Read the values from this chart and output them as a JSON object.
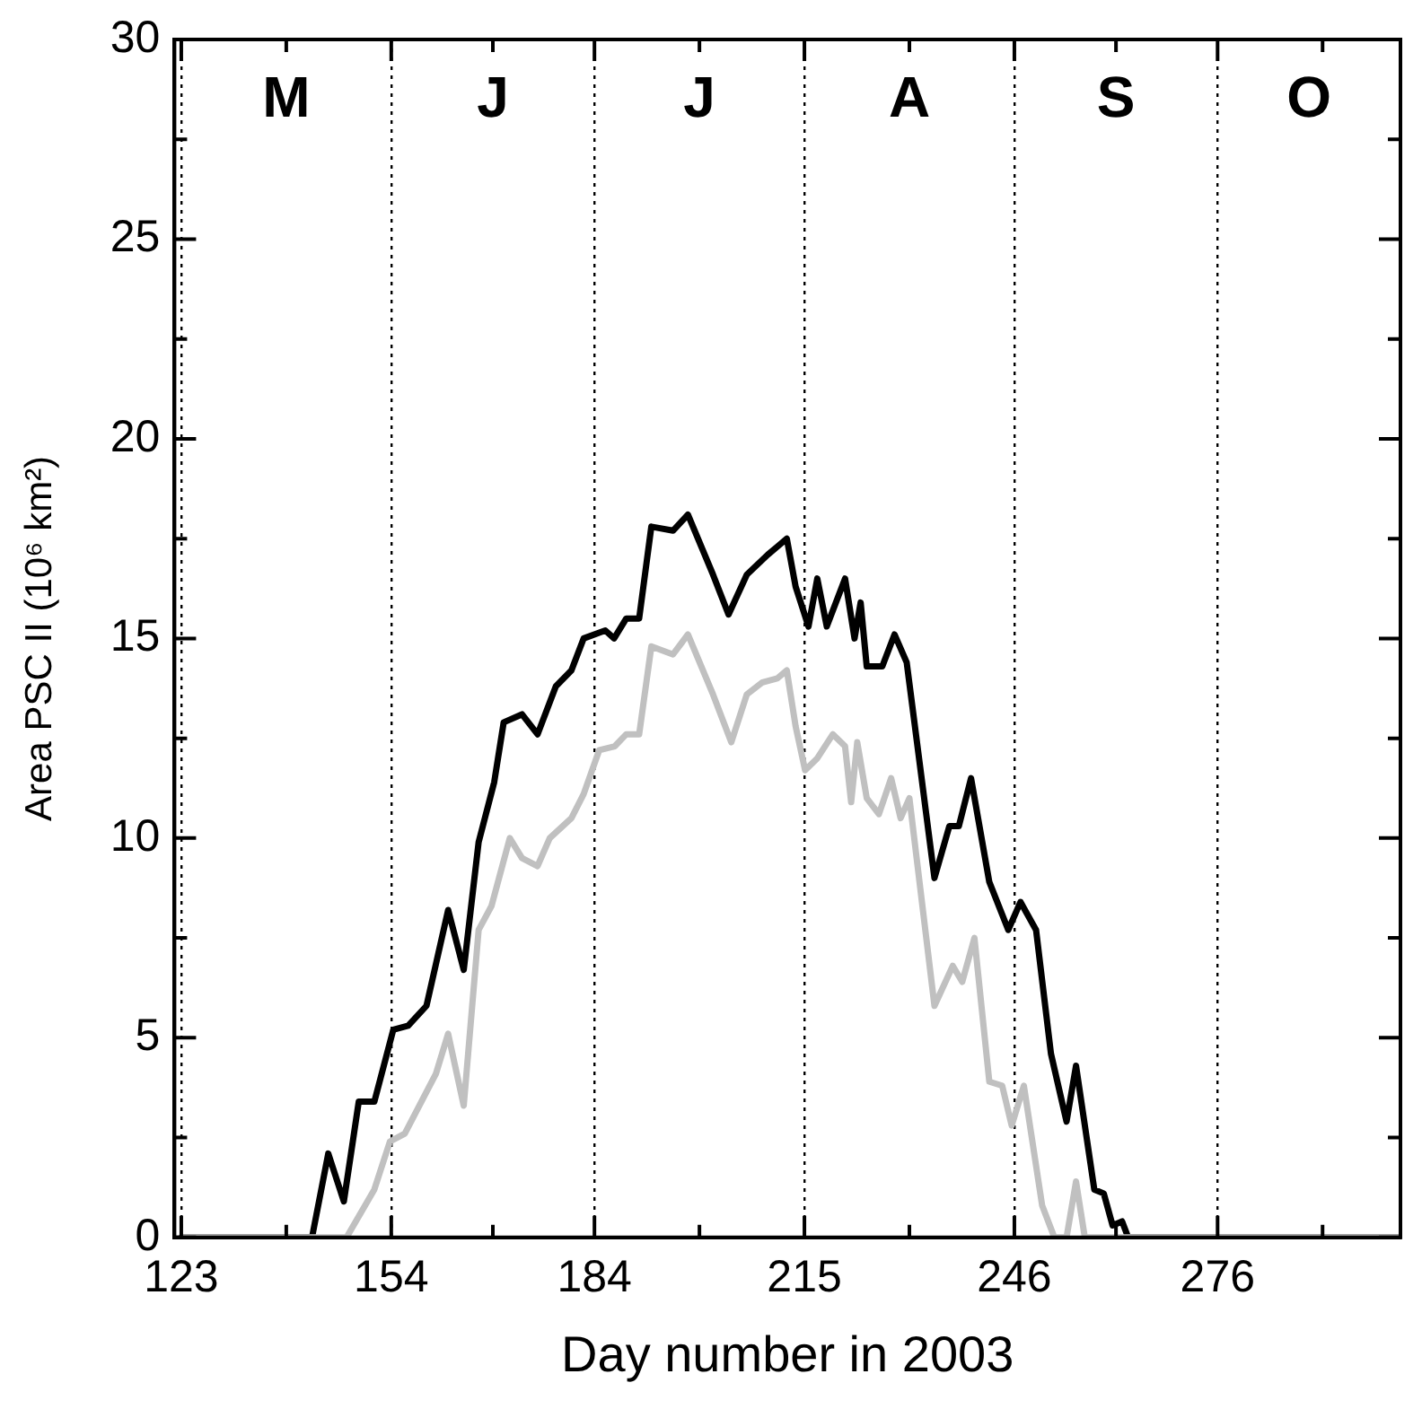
{
  "chart_data": {
    "type": "line",
    "xlabel": "Day number in 2003",
    "ylabel": "Area PSC II (10⁶ km²)",
    "xlim": [
      122,
      303
    ],
    "ylim": [
      0,
      30
    ],
    "xticks": [
      123,
      {
        "value": 138.5,
        "label": null
      },
      154,
      {
        "value": 169,
        "label": null
      },
      184,
      {
        "value": 199.5,
        "label": null
      },
      215,
      {
        "value": 230.5,
        "label": null
      },
      246,
      {
        "value": 261,
        "label": null
      },
      276,
      {
        "value": 291.5,
        "label": null
      }
    ],
    "yticks": [
      0,
      {
        "value": 2.5,
        "label": null
      },
      5,
      {
        "value": 7.5,
        "label": null
      },
      10,
      {
        "value": 12.5,
        "label": null
      },
      15,
      {
        "value": 17.5,
        "label": null
      },
      20,
      {
        "value": 22.5,
        "label": null
      },
      25,
      {
        "value": 27.5,
        "label": null
      },
      30
    ],
    "grid": "x",
    "legend": false,
    "marker": "none",
    "line_style": "solid",
    "annotations": [
      "M",
      "J",
      "J",
      "A",
      "S",
      "O"
    ],
    "series": [
      {
        "color": "#000000",
        "x": [
          123,
          142.3,
          144.7,
          147,
          149.2,
          151.5,
          154.3,
          156.5,
          159.2,
          162.4,
          164.7,
          166.9,
          169.2,
          170.6,
          173.3,
          175.6,
          178.3,
          180.6,
          182.4,
          185.6,
          186.9,
          188.7,
          190.6,
          192.4,
          195.6,
          197.8,
          201.5,
          203.8,
          206.5,
          209.6,
          211,
          212.4,
          213.7,
          215.6,
          216.9,
          218.3,
          221,
          222.4,
          223.3,
          224.2,
          226.5,
          228.3,
          230.1,
          234.2,
          236.4,
          237.8,
          239.6,
          242.3,
          245.1,
          246.9,
          249.2,
          251.4,
          253.7,
          255.1,
          257.8,
          259.2,
          260.5,
          261.9,
          262.8,
          303
        ],
        "values": [
          0,
          0,
          2.1,
          0.9,
          3.4,
          3.4,
          5.2,
          5.3,
          5.8,
          8.2,
          6.7,
          9.9,
          11.4,
          12.9,
          13.1,
          12.6,
          13.8,
          14.2,
          15,
          15.2,
          15,
          15.5,
          15.5,
          17.8,
          17.7,
          18.1,
          16.6,
          15.6,
          16.6,
          17.1,
          17.3,
          17.5,
          16.3,
          15.3,
          16.5,
          15.3,
          16.5,
          15,
          15.9,
          14.3,
          14.3,
          15.1,
          14.4,
          9,
          10.3,
          10.3,
          11.5,
          8.9,
          7.7,
          8.4,
          7.7,
          4.6,
          2.9,
          4.3,
          1.2,
          1.1,
          0.3,
          0.4,
          0,
          0
        ]
      },
      {
        "color": "#c0c0c0",
        "x": [
          123,
          147.4,
          151.5,
          153.8,
          156,
          160.6,
          162.4,
          164.7,
          166.9,
          168.8,
          171.5,
          173.3,
          175.6,
          177.4,
          180.6,
          182.4,
          184.7,
          187,
          188.7,
          190.6,
          192.4,
          195.6,
          197.8,
          201.5,
          204.2,
          206.5,
          208.8,
          211,
          212.4,
          213.7,
          215.1,
          216.9,
          219.2,
          221,
          221.9,
          222.8,
          224.2,
          226,
          227.8,
          229.2,
          230.5,
          234.2,
          236.9,
          238.3,
          240.1,
          242.3,
          244.2,
          245.6,
          247.4,
          250.1,
          251.9,
          253.7,
          255.1,
          256.4,
          303
        ],
        "values": [
          0,
          0,
          1.2,
          2.4,
          2.6,
          4.1,
          5.1,
          3.3,
          7.7,
          8.3,
          10,
          9.5,
          9.3,
          10,
          10.5,
          11.1,
          12.2,
          12.3,
          12.6,
          12.6,
          14.8,
          14.6,
          15.1,
          13.6,
          12.4,
          13.6,
          13.9,
          14,
          14.2,
          12.8,
          11.7,
          12,
          12.6,
          12.3,
          10.9,
          12.4,
          11,
          10.6,
          11.5,
          10.5,
          11,
          5.8,
          6.8,
          6.4,
          7.5,
          3.9,
          3.8,
          2.8,
          3.8,
          0.8,
          0,
          0,
          1.4,
          0,
          0
        ]
      }
    ]
  }
}
